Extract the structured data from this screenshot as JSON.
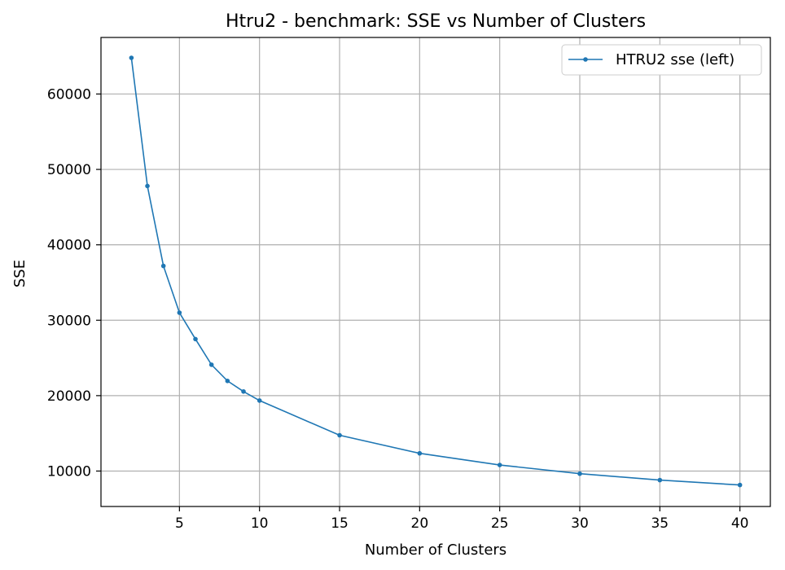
{
  "chart_data": {
    "type": "line",
    "title": "Htru2 - benchmark: SSE vs Number of Clusters",
    "xlabel": "Number of Clusters",
    "ylabel": "SSE",
    "xlim": [
      0.1,
      41.9
    ],
    "ylim": [
      5300,
      67500
    ],
    "xticks": [
      5,
      10,
      15,
      20,
      25,
      30,
      35,
      40
    ],
    "yticks": [
      10000,
      20000,
      30000,
      40000,
      50000,
      60000
    ],
    "grid": true,
    "legend_position": "top-right",
    "series": [
      {
        "name": "HTRU2 sse (left)",
        "color": "#1f77b4",
        "marker": "circle",
        "x": [
          2,
          3,
          4,
          5,
          6,
          7,
          8,
          9,
          10,
          15,
          20,
          25,
          30,
          35,
          40
        ],
        "y": [
          64800,
          47800,
          37200,
          31000,
          27500,
          24100,
          21950,
          20550,
          19350,
          14750,
          12350,
          10800,
          9650,
          8800,
          8150
        ]
      }
    ]
  }
}
